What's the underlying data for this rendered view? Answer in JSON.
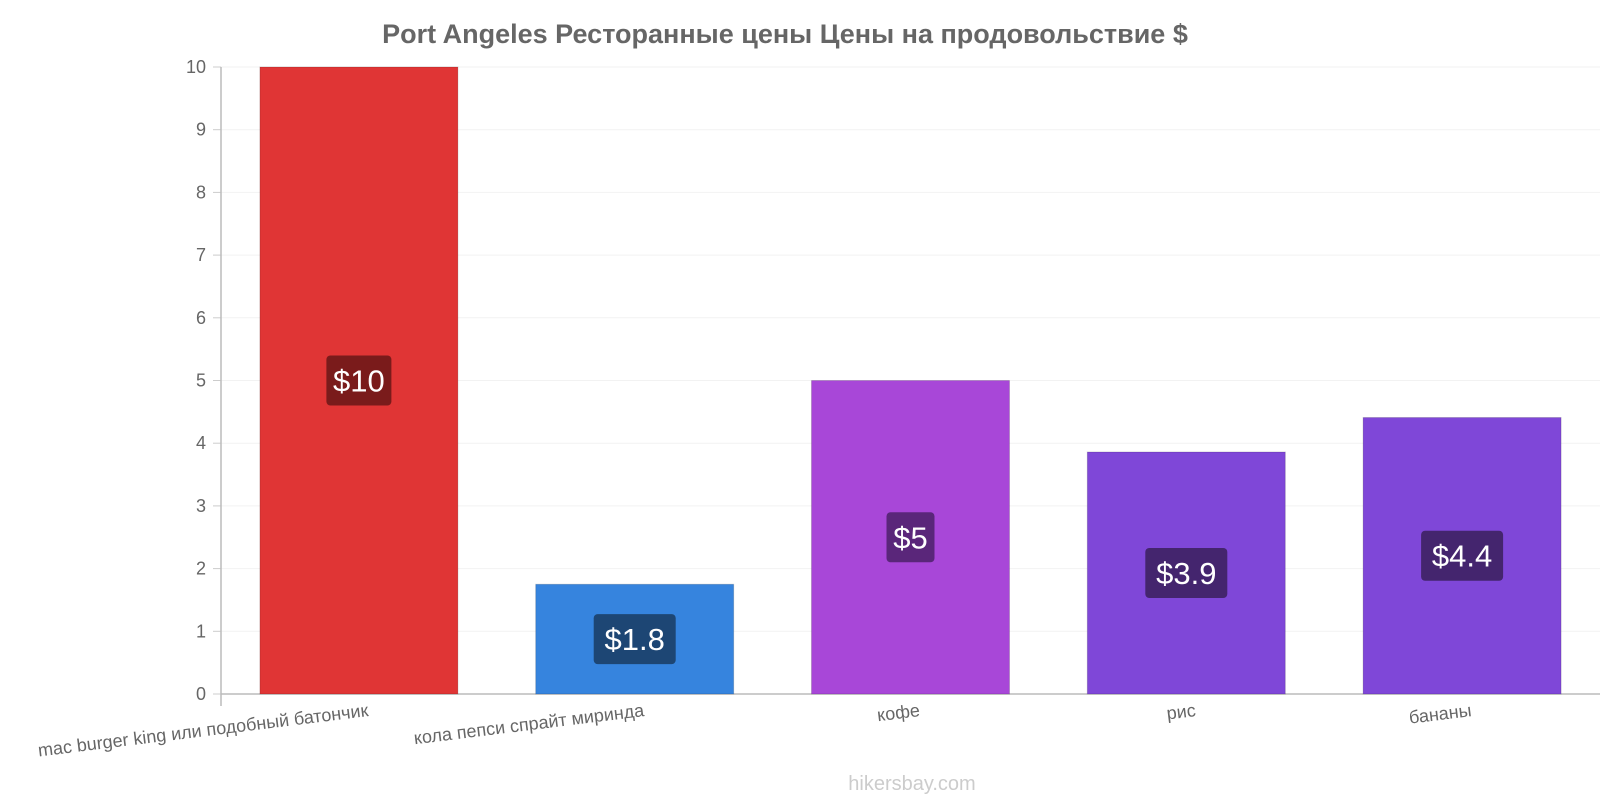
{
  "chart_data": {
    "type": "bar",
    "title": "Port Angeles Ресторанные цены Цены на продовольствие $",
    "xlabel": "",
    "ylabel": "",
    "ylim": [
      0,
      10
    ],
    "yticks": [
      0,
      1,
      2,
      3,
      4,
      5,
      6,
      7,
      8,
      9,
      10
    ],
    "grid": true,
    "categories": [
      "mac burger king или подобный батончик",
      "кола пепси спрайт миринда",
      "кофе",
      "рис",
      "бананы"
    ],
    "values": [
      10,
      1.75,
      5,
      3.86,
      4.41
    ],
    "data_labels": [
      "$10",
      "$1.8",
      "$5",
      "$3.9",
      "$4.4"
    ],
    "colors": [
      "#e03535",
      "#3684de",
      "#a847d8",
      "#7f47d8",
      "#7f47d8"
    ],
    "label_bg_colors": [
      "#7a1b1b",
      "#1d4674",
      "#5a267a",
      "#44256e",
      "#44256e"
    ]
  },
  "watermark": "hikersbay.com"
}
